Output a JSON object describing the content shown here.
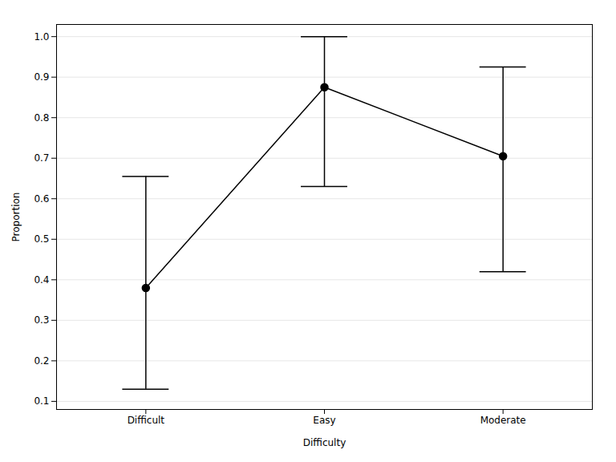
{
  "chart_data": {
    "type": "line",
    "xlabel": "Difficulty",
    "ylabel": "Proportion",
    "categories": [
      "Difficult",
      "Easy",
      "Moderate"
    ],
    "values": [
      0.38,
      0.875,
      0.705
    ],
    "ci_lower": [
      0.13,
      0.63,
      0.42
    ],
    "ci_upper": [
      0.655,
      1.0,
      0.925
    ],
    "color": "#000000",
    "marker": "circle",
    "ylim": [
      0.08,
      1.03
    ],
    "yticks": [
      0.1,
      0.2,
      0.3,
      0.4,
      0.5,
      0.6,
      0.7,
      0.8,
      0.9,
      {
        "value": 1.0,
        "label": "1.0"
      }
    ],
    "grid": true
  }
}
